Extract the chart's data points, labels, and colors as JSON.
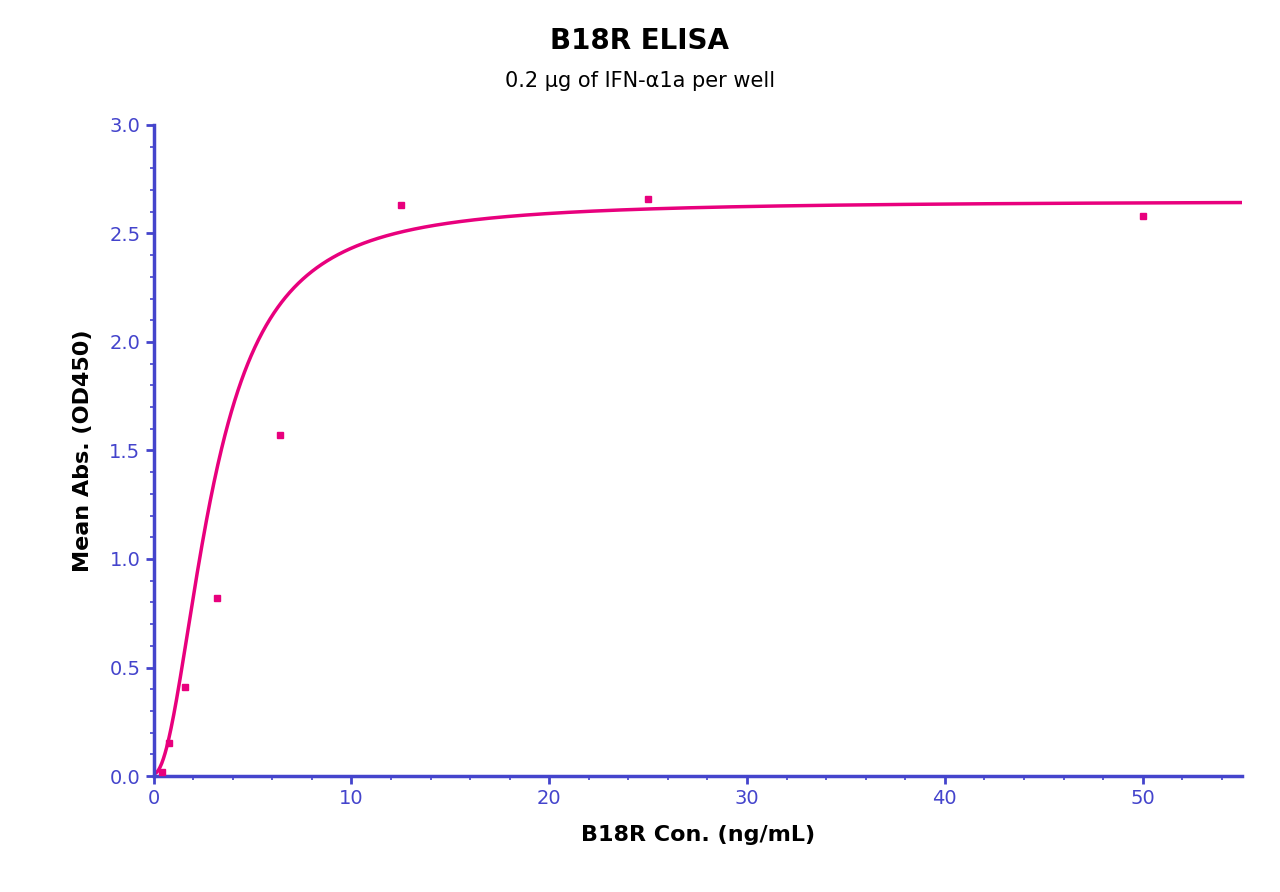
{
  "title": "B18R ELISA",
  "subtitle": "0.2 μg of IFN-α1a per well",
  "xlabel": "B18R Con. (ng/mL)",
  "ylabel": "Mean Abs. (OD450)",
  "data_x": [
    0.4,
    0.8,
    1.6,
    3.2,
    6.4,
    12.5,
    25,
    50
  ],
  "data_y": [
    0.02,
    0.15,
    0.41,
    0.82,
    1.57,
    2.63,
    2.66,
    2.58
  ],
  "xlim": [
    0,
    55
  ],
  "ylim": [
    0.0,
    3.0
  ],
  "xticks": [
    0,
    10,
    20,
    30,
    40,
    50
  ],
  "yticks": [
    0.0,
    0.5,
    1.0,
    1.5,
    2.0,
    2.5,
    3.0
  ],
  "curve_color": "#E8007D",
  "marker_color": "#E8007D",
  "axis_color": "#4444CC",
  "title_fontsize": 20,
  "subtitle_fontsize": 15,
  "label_fontsize": 16,
  "tick_fontsize": 14,
  "background_color": "#FFFFFF",
  "figure_background": "#FFFFFF"
}
